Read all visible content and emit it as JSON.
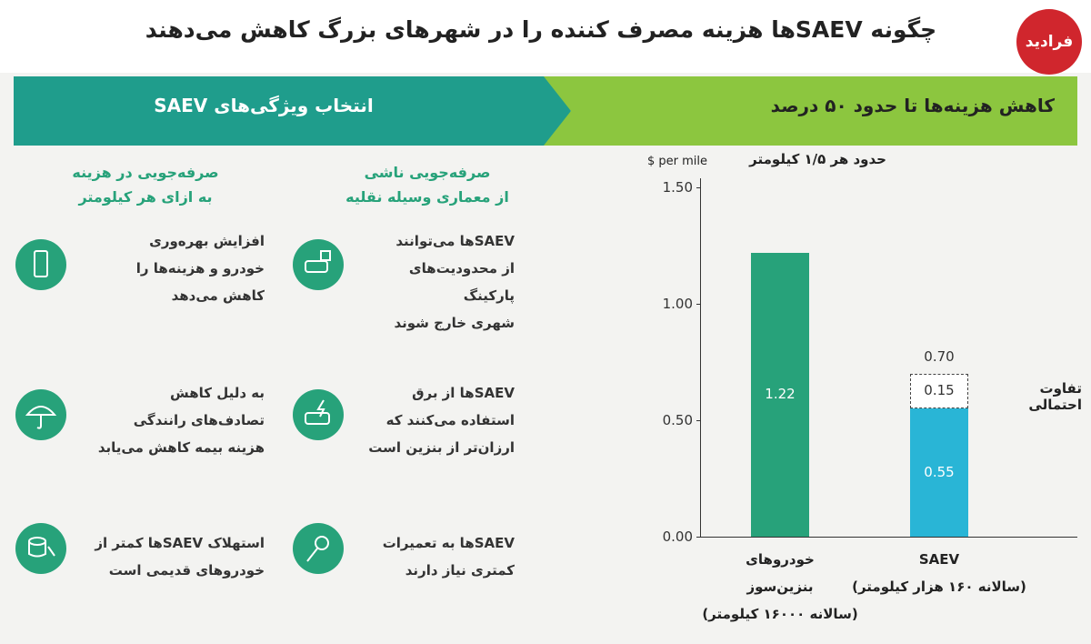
{
  "header": {
    "title": "چگونه SAEVها هزینه مصرف کننده را در شهرهای بزرگ کاهش می‌دهند",
    "logo": "فرادید"
  },
  "banners": {
    "left": "انتخاب ویژگی‌های SAEV",
    "right": "کاهش هزینه‌ها تا حدود ۵۰ درصد"
  },
  "columns": [
    {
      "heading": "صرفه‌جویی ناشی\nاز معماری وسیله نقلیه",
      "items": [
        "SAEVها می‌توانند\nاز محدودیت‌های پارکینگ\nشهری خارج شوند",
        "SAEVها از برق\nاستفاده می‌کنند که\nارزان‌تر از بنزین است",
        "SAEVها به تعمیرات\nکمتری نیاز دارند"
      ]
    },
    {
      "heading": "صرفه‌جویی در هزینه\nبه ازای هر کیلومتر",
      "items": [
        "افزایش بهره‌وری\nخودرو و هزینه‌ها را\nکاهش می‌دهد",
        "به دلیل کاهش\nتصادف‌های رانندگی\nهزینه بیمه کاهش می‌یابد",
        "استهلاک SAEVها کمتر از\nخودروهای قدیمی است"
      ]
    }
  ],
  "chart_data": {
    "type": "stacked-bar",
    "y_unit": "$ per mile",
    "y_label": "حدود هر ۱/۵ کیلومتر",
    "categories": [
      "خودروهای\nبنزین‌سوز\n(سالانه ۱۶۰۰۰ کیلومتر)",
      "SAEV\n(سالانه ۱۶۰ هزار کیلومتر)"
    ],
    "series": [
      {
        "colors": [
          "#27a27a",
          "#29b5d6"
        ],
        "values": [
          1.22,
          0.55
        ],
        "value_labels": [
          "1.22",
          "0.55"
        ]
      },
      {
        "style": "dashed",
        "values": [
          null,
          0.15
        ],
        "value_labels": [
          null,
          "0.15"
        ],
        "annotation": "تفاوت احتمالی"
      }
    ],
    "total_labels": [
      null,
      {
        "value": 0.7,
        "label": "0.70"
      }
    ],
    "ylim": [
      0,
      1.54
    ],
    "yticks": [
      {
        "value": 0,
        "label": "0.00"
      },
      {
        "value": 0.5,
        "label": "0.50"
      },
      {
        "value": 1,
        "label": "1.00"
      },
      {
        "value": 1.5,
        "label": "1.50"
      }
    ]
  }
}
